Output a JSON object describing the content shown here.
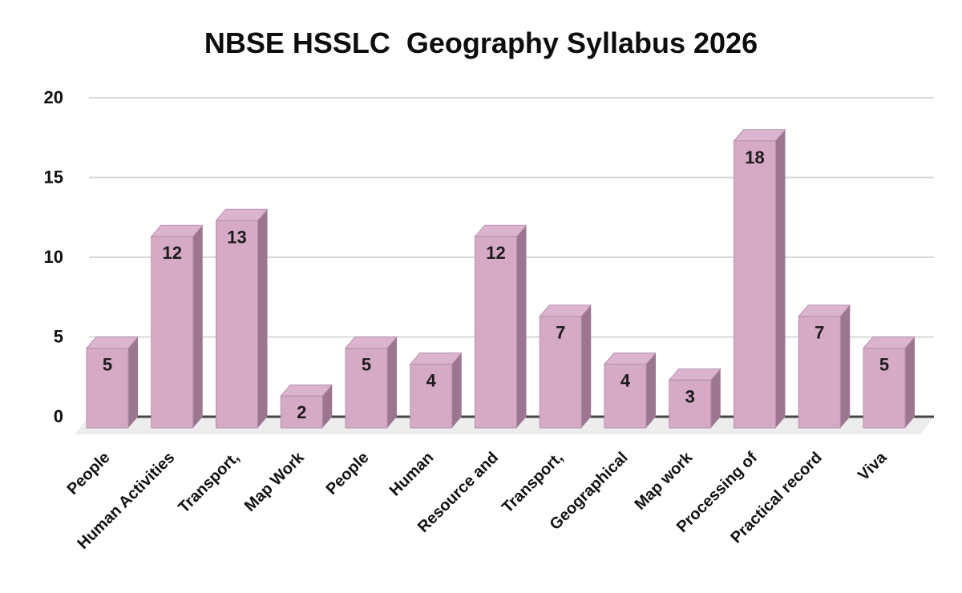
{
  "page": {
    "background": "#ffffff"
  },
  "chart_data": {
    "type": "bar",
    "variant": "3d-column",
    "title": "NBSE HSSLC  Geography Syllabus 2026",
    "categories": [
      "People",
      "Human Activities",
      "Transport,",
      "Map Work",
      "People",
      "Human",
      "Resource and",
      "Transport,",
      "Geographical",
      "Map work",
      "Processing of",
      "Practical record",
      "Viva"
    ],
    "values": [
      5,
      12,
      13,
      2,
      5,
      4,
      12,
      7,
      4,
      3,
      18,
      7,
      5
    ],
    "xlabel": "",
    "ylabel": "",
    "ylim": [
      0,
      20
    ],
    "y_ticks": [
      0,
      5,
      10,
      15,
      20
    ],
    "grid": true,
    "legend": "none",
    "x_label_rotation_deg": -45,
    "colors": {
      "bar_front": "#d6aac5",
      "bar_top": "#ddb4ce",
      "bar_side": "#9c7691",
      "bar_edge": "#b untouched",
      "bar_stroke": "#b491a9",
      "gridline": "#d9d9d9",
      "baseline": "#454545",
      "floor": "#ededed",
      "title_text": "#0d0d0d",
      "axis_text": "#111111",
      "value_text": "#1c1c1c"
    }
  }
}
